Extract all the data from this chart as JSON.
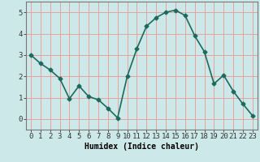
{
  "x": [
    0,
    1,
    2,
    3,
    4,
    5,
    6,
    7,
    8,
    9,
    10,
    11,
    12,
    13,
    14,
    15,
    16,
    17,
    18,
    19,
    20,
    21,
    22,
    23
  ],
  "y": [
    3.0,
    2.6,
    2.3,
    1.9,
    0.95,
    1.55,
    1.05,
    0.9,
    0.5,
    0.05,
    2.0,
    3.3,
    4.35,
    4.75,
    5.0,
    5.1,
    4.85,
    3.9,
    3.15,
    1.65,
    2.05,
    1.3,
    0.7,
    0.15
  ],
  "line_color": "#1a6b5e",
  "marker": "D",
  "markersize": 2.5,
  "linewidth": 1.2,
  "xlabel": "Humidex (Indice chaleur)",
  "xlim": [
    -0.5,
    23.5
  ],
  "ylim": [
    -0.5,
    5.5
  ],
  "yticks": [
    0,
    1,
    2,
    3,
    4,
    5
  ],
  "xticks": [
    0,
    1,
    2,
    3,
    4,
    5,
    6,
    7,
    8,
    9,
    10,
    11,
    12,
    13,
    14,
    15,
    16,
    17,
    18,
    19,
    20,
    21,
    22,
    23
  ],
  "bg_color": "#cde8e8",
  "grid_color": "#e8a0a0",
  "xlabel_fontsize": 7,
  "tick_fontsize": 6.5
}
